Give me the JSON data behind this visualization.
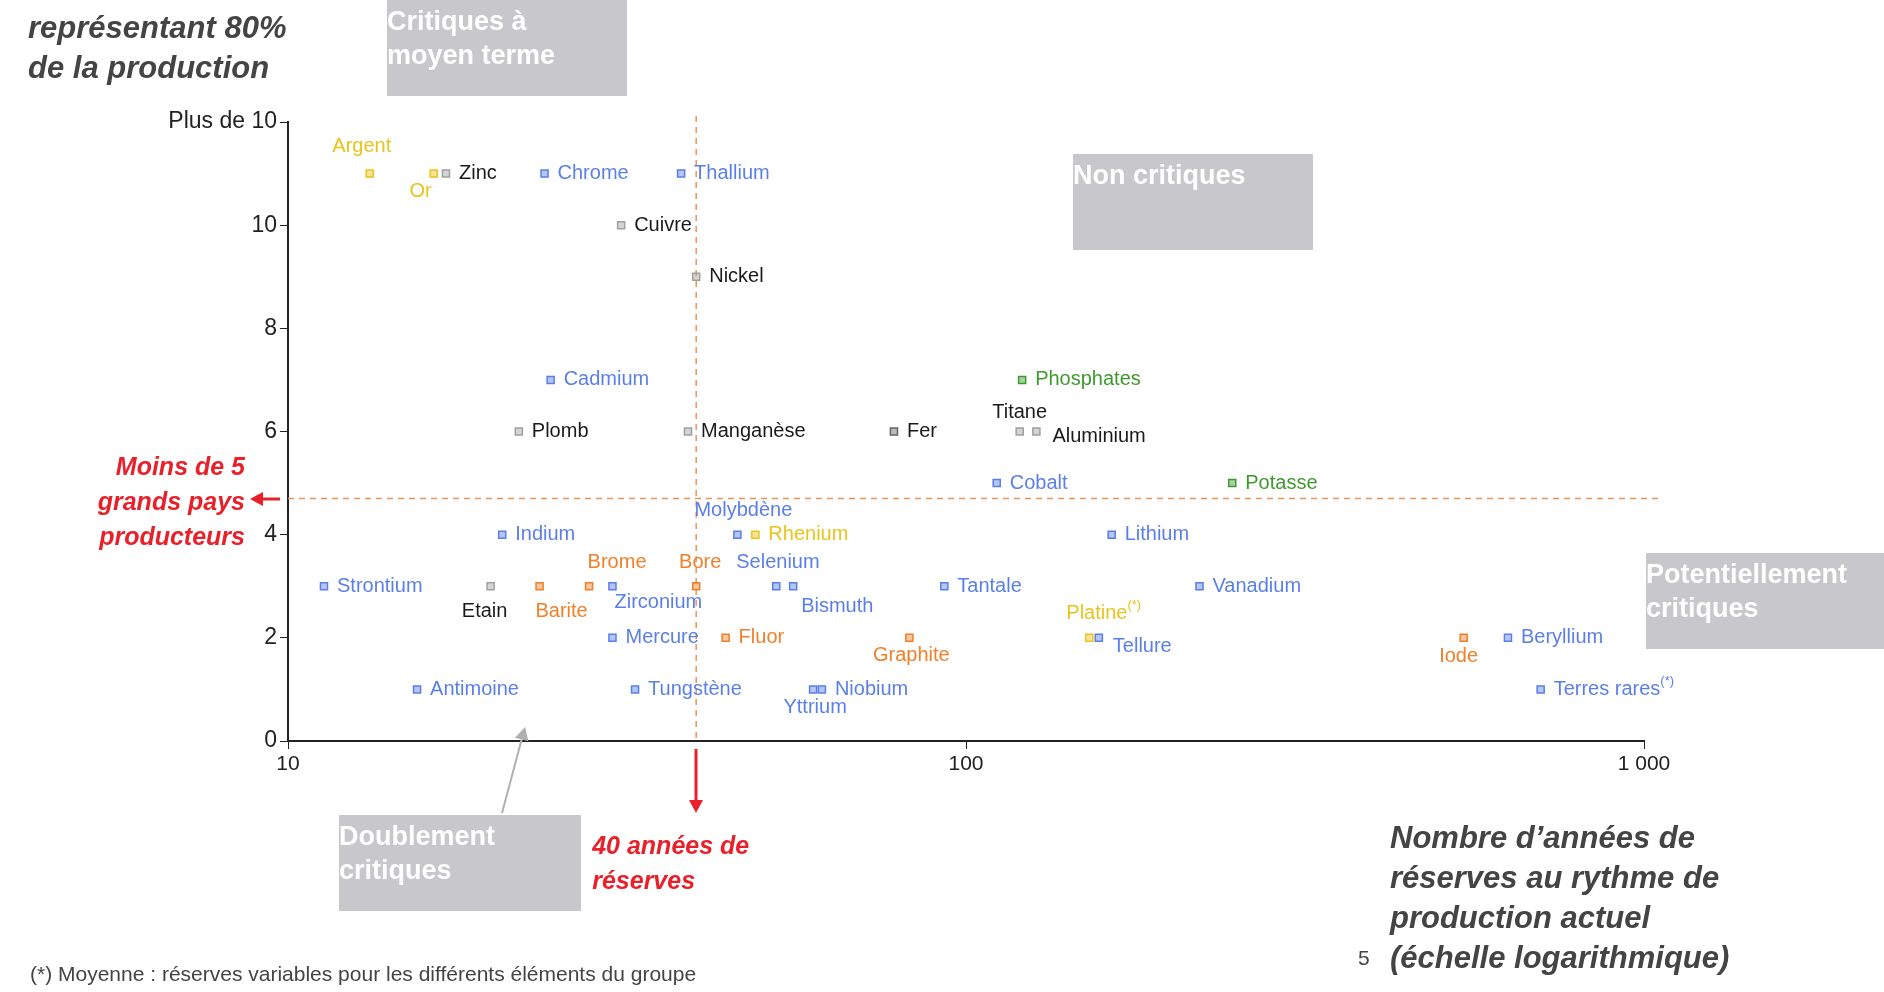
{
  "chart_data": {
    "type": "scatter",
    "ylabel": "représentant 80% de la production",
    "xlabel": "Nombre d’années de réserves au rythme de production actuel (échelle logarithmique)",
    "log": "x",
    "grid": false,
    "marker": "square",
    "xlim": [
      10,
      1000
    ],
    "xticks": [
      10,
      100,
      {
        "value": 1000,
        "label": "1 000"
      }
    ],
    "ylim": [
      0,
      12
    ],
    "yticks": [
      0,
      2,
      4,
      6,
      8,
      10,
      {
        "value": 12,
        "label": "Plus de 10"
      }
    ],
    "series": [
      {
        "color": "#5b7fe8",
        "x": [
          23.9,
          38,
          24.4,
          111,
          46,
          20.7,
          164,
          11.3,
          30.1,
          52.5,
          55.6,
          92.9,
          221,
          30.1,
          157,
          630,
          15.5,
          32.5,
          59.5,
          61.3,
          704
        ],
        "values": [
          11,
          11,
          7,
          5,
          4,
          4,
          4,
          3,
          3,
          3,
          3,
          3,
          3,
          2,
          2,
          2,
          1,
          1,
          1,
          1,
          1
        ]
      },
      {
        "color": "#a0a0a0",
        "x": [
          17.1,
          31,
          40,
          21.9,
          38.9,
          120,
          127,
          19.9
        ],
        "values": [
          11,
          10,
          9,
          6,
          6,
          6,
          6,
          3
        ]
      },
      {
        "color": "#666666",
        "x": [
          78.3
        ],
        "values": [
          6
        ]
      },
      {
        "color": "#f0802a",
        "x": [
          23.5,
          27.8,
          40,
          44.2,
          82.5,
          542
        ],
        "values": [
          3,
          3,
          3,
          2,
          2,
          2
        ]
      },
      {
        "color": "#e8c41c",
        "x": [
          13.2,
          16.4,
          48.9,
          152
        ],
        "values": [
          11,
          11,
          4,
          2
        ]
      },
      {
        "color": "#3f9a2e",
        "x": [
          121,
          247
        ],
        "values": [
          7,
          5
        ]
      }
    ],
    "ref_lines": [
      {
        "axis": "x",
        "value": 40,
        "label": "40 années de réserves",
        "color": "#e8955a",
        "line_style": "dashed"
      },
      {
        "axis": "y",
        "value": 4.7,
        "label": "Moins de 5 grands pays producteurs",
        "color": "#e8955a",
        "line_style": "dashed"
      }
    ],
    "annotations": [
      "Critiques à moyen terme",
      "Non critiques",
      "Potentiellement critiques",
      "Doublement critiques",
      "(*) Moyenne : réserves variables pour les différents éléments du groupe",
      "5",
      {
        "text": "Argent",
        "x": 13.2,
        "y": 11
      },
      {
        "text": "Or",
        "x": 16.4,
        "y": 11
      },
      {
        "text": "Zinc",
        "x": 17.1,
        "y": 11
      },
      {
        "text": "Chrome",
        "x": 23.9,
        "y": 11
      },
      {
        "text": "Thallium",
        "x": 38,
        "y": 11
      },
      {
        "text": "Cuivre",
        "x": 31,
        "y": 10
      },
      {
        "text": "Nickel",
        "x": 40,
        "y": 9
      },
      {
        "text": "Cadmium",
        "x": 24.4,
        "y": 7
      },
      {
        "text": "Plomb",
        "x": 21.9,
        "y": 6
      },
      {
        "text": "Manganèse",
        "x": 38.9,
        "y": 6
      },
      {
        "text": "Fer",
        "x": 78.3,
        "y": 6
      },
      {
        "text": "Titane",
        "x": 120,
        "y": 6
      },
      {
        "text": "Aluminium",
        "x": 127,
        "y": 6
      },
      {
        "text": "Phosphates",
        "x": 121,
        "y": 7
      },
      {
        "text": "Cobalt",
        "x": 111,
        "y": 5
      },
      {
        "text": "Potasse",
        "x": 247,
        "y": 5
      },
      {
        "text": "Molybdène",
        "x": 46,
        "y": 4
      },
      {
        "text": "Rhenium",
        "x": 48.9,
        "y": 4
      },
      {
        "text": "Indium",
        "x": 20.7,
        "y": 4
      },
      {
        "text": "Lithium",
        "x": 164,
        "y": 4
      },
      {
        "text": "Strontium",
        "x": 11.3,
        "y": 3
      },
      {
        "text": "Etain",
        "x": 19.9,
        "y": 3
      },
      {
        "text": "Barite",
        "x": 23.5,
        "y": 3
      },
      {
        "text": "Brome",
        "x": 27.8,
        "y": 3
      },
      {
        "text": "Zirconium",
        "x": 30.1,
        "y": 3
      },
      {
        "text": "Bore",
        "x": 40,
        "y": 3
      },
      {
        "text": "Selenium",
        "x": 52.5,
        "y": 3
      },
      {
        "text": "Bismuth",
        "x": 55.6,
        "y": 3
      },
      {
        "text": "Tantale",
        "x": 92.9,
        "y": 3
      },
      {
        "text": "Vanadium",
        "x": 221,
        "y": 3
      },
      {
        "text": "Mercure",
        "x": 30.1,
        "y": 2
      },
      {
        "text": "Fluor",
        "x": 44.2,
        "y": 2
      },
      {
        "text": "Graphite",
        "x": 82.5,
        "y": 2
      },
      {
        "text": "Platine$^{(*)}$",
        "x": 152,
        "y": 2
      },
      {
        "text": "Tellure",
        "x": 157,
        "y": 2
      },
      {
        "text": "Iode",
        "x": 542,
        "y": 2
      },
      {
        "text": "Beryllium",
        "x": 630,
        "y": 2
      },
      {
        "text": "Antimoine",
        "x": 15.5,
        "y": 1
      },
      {
        "text": "Tungstène",
        "x": 32.5,
        "y": 1
      },
      {
        "text": "Yttrium",
        "x": 59.5,
        "y": 1
      },
      {
        "text": "Niobium",
        "x": 61.3,
        "y": 1
      },
      {
        "text": "Terres rares$^{(*)}$",
        "x": 704,
        "y": 1
      }
    ]
  }
}
